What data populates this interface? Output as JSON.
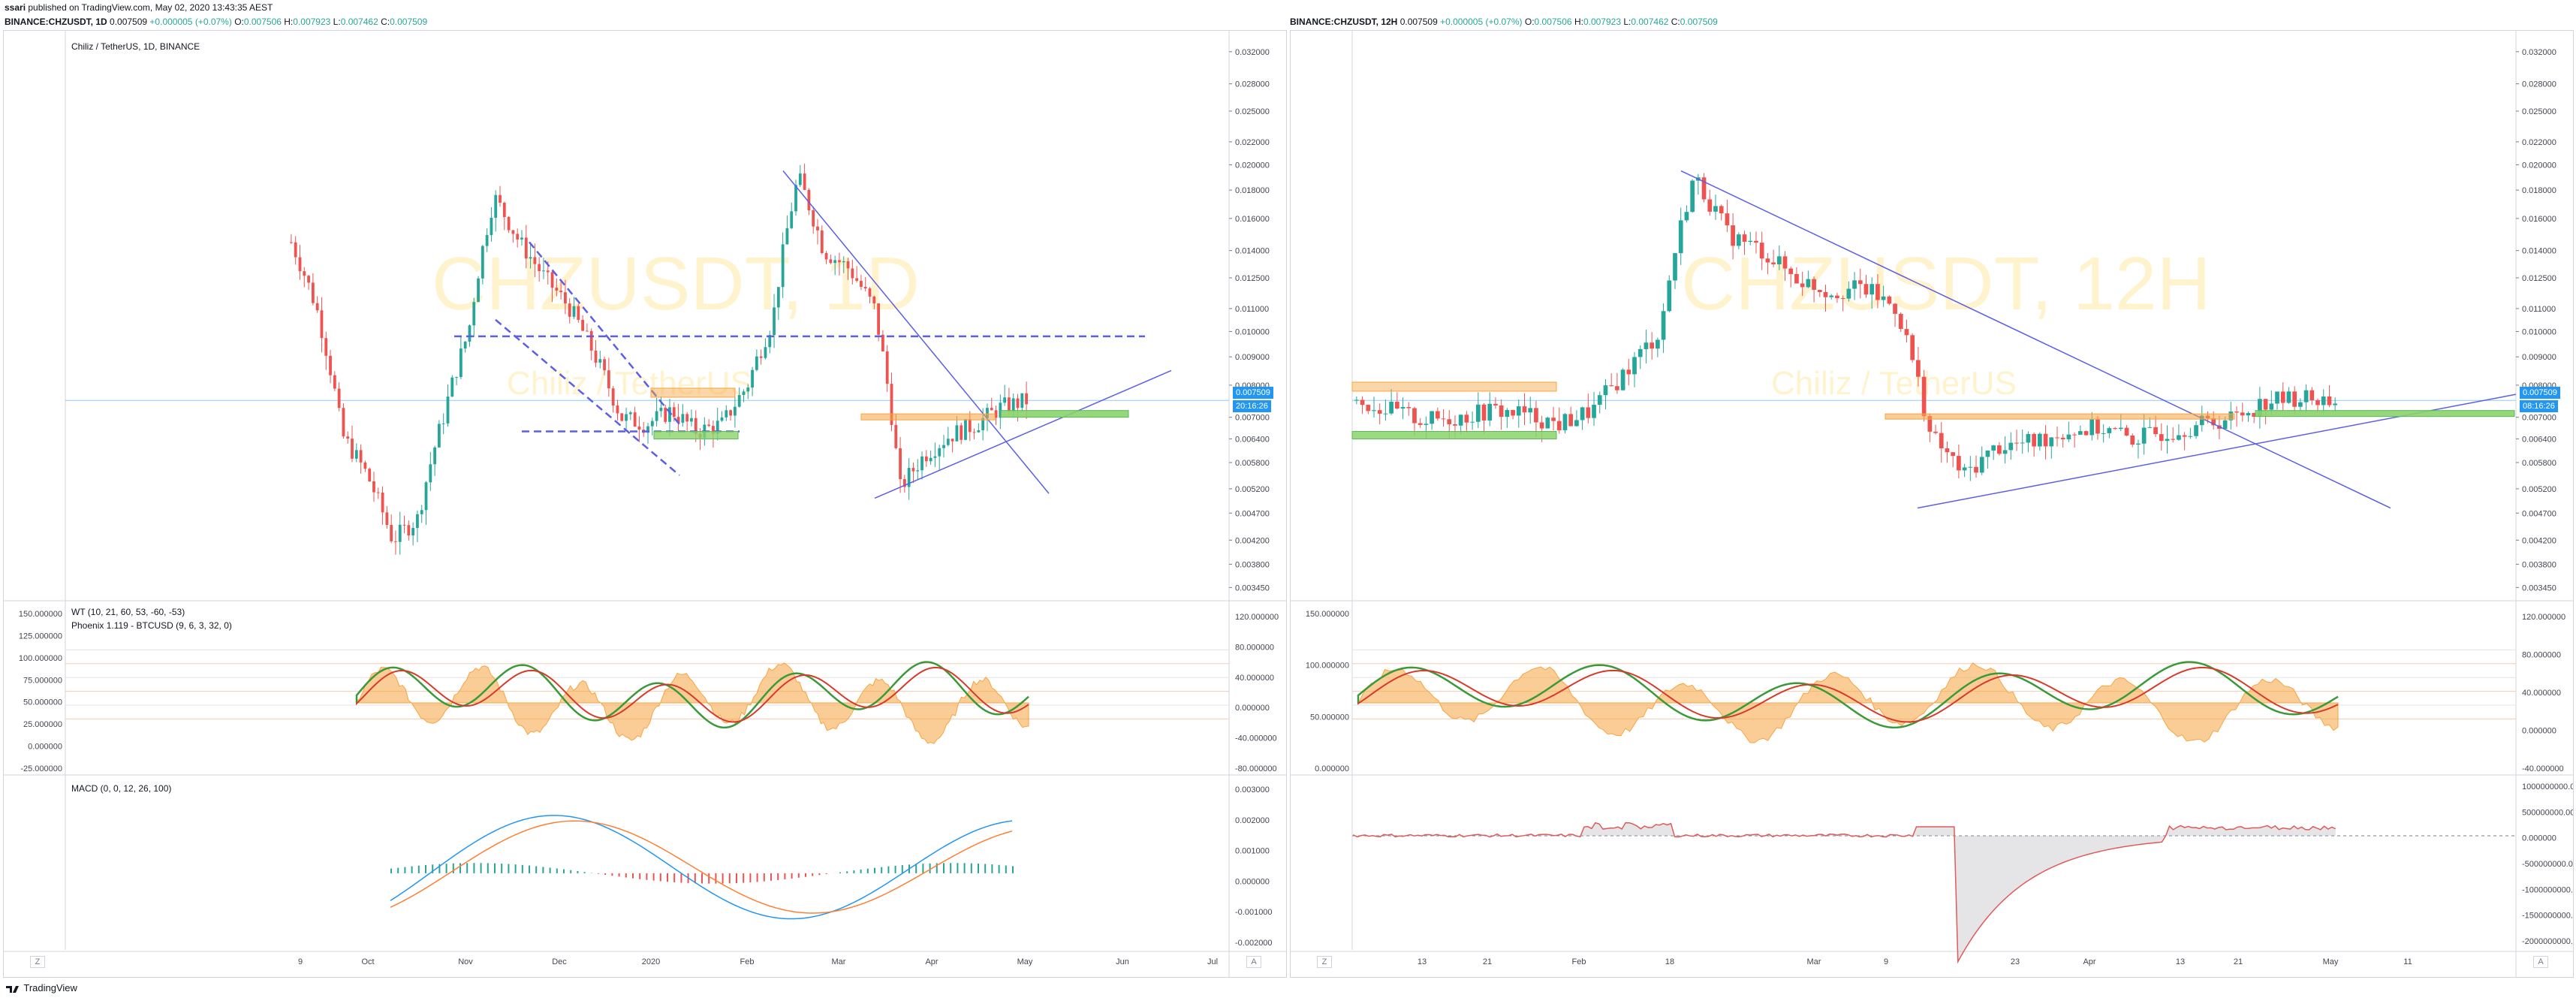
{
  "header": {
    "publisher": "ssari",
    "published_text": "published on TradingView.com, May 02, 2020 13:43:35 AEST"
  },
  "left": {
    "symbol": "BINANCE:CHZUSDT, 1D",
    "O": "0.007509",
    "change": "+0.000005 (+0.07%)",
    "open": "0.007506",
    "high": "0.007923",
    "low": "0.007462",
    "close": "0.007509",
    "pane_title": "Chiliz / TetherUS, 1D, BINANCE",
    "watermark": "CHZUSDT, 1D",
    "watermark_sub": "Chiliz / TetherUS",
    "price_tag": "0.007509",
    "timer_tag": "20:16:26",
    "price_ticks": [
      "0.032000",
      "0.028000",
      "0.025000",
      "0.022000",
      "0.020000",
      "0.018000",
      "0.016000",
      "0.014000",
      "0.012500",
      "0.011000",
      "0.010000",
      "0.009000",
      "0.008000",
      "0.007000",
      "0.006400",
      "0.005800",
      "0.005200",
      "0.004700",
      "0.004200",
      "0.003800",
      "0.003450"
    ],
    "wt_title": "WT (10, 21, 60, 53, -60, -53)",
    "phoenix_title": "Phoenix 1.119 - BTCUSD (9, 6, 3, 32, 0)",
    "osc_left_ticks": [
      "150.000000",
      "125.000000",
      "100.000000",
      "75.000000",
      "50.000000",
      "25.000000",
      "0.000000",
      "-25.000000"
    ],
    "osc_right_ticks": [
      "120.000000",
      "80.000000",
      "40.000000",
      "0.000000",
      "-40.000000",
      "-80.000000"
    ],
    "macd_title": "MACD (0, 0, 12, 26, 100)",
    "macd_ticks": [
      "0.003000",
      "0.002000",
      "0.001000",
      "0.000000",
      "-0.001000",
      "-0.002000"
    ],
    "time_ticks": [
      "9",
      "Oct",
      "Nov",
      "Dec",
      "2020",
      "Feb",
      "Mar",
      "Apr",
      "May",
      "Jun",
      "Jul"
    ]
  },
  "right": {
    "symbol": "BINANCE:CHZUSDT, 12H",
    "O": "0.007509",
    "change": "+0.000005 (+0.07%)",
    "open": "0.007506",
    "high": "0.007923",
    "low": "0.007462",
    "close": "0.007509",
    "watermark": "CHZUSDT, 12H",
    "watermark_sub": "Chiliz / TetherUS",
    "price_tag": "0.007509",
    "timer_tag": "08:16:26",
    "price_ticks": [
      "0.032000",
      "0.028000",
      "0.025000",
      "0.022000",
      "0.020000",
      "0.018000",
      "0.016000",
      "0.014000",
      "0.012500",
      "0.011000",
      "0.010000",
      "0.009000",
      "0.008000",
      "0.007000",
      "0.006400",
      "0.005800",
      "0.005200",
      "0.004700",
      "0.004200",
      "0.003800",
      "0.003450"
    ],
    "osc_left_ticks": [
      "150.000000",
      "100.000000",
      "50.000000",
      "0.000000"
    ],
    "osc_right_ticks": [
      "120.000000",
      "80.000000",
      "40.000000",
      "0.000000",
      "-40.000000"
    ],
    "macd_ticks": [
      "1000000000.000000",
      "500000000.000000",
      "0.000000",
      "-500000000.000000",
      "-1000000000.000000",
      "-1500000000.000000",
      "-2000000000.000000"
    ],
    "time_ticks": [
      "13",
      "21",
      "Feb",
      "18",
      "Mar",
      "9",
      "23",
      "Apr",
      "13",
      "21",
      "May",
      "11"
    ]
  },
  "axis_button": "A",
  "zoom_button": "Z",
  "footer": {
    "brand": "TradingView"
  },
  "colors": {
    "up": "#26a69a",
    "down": "#ef5350",
    "trend": "#5b5fe8",
    "orange": "#f7a440",
    "green": "#8bd36b",
    "price_tag": "#2196f3"
  },
  "chart_data": [
    {
      "type": "line",
      "title": "Chiliz / TetherUS, 1D, BINANCE",
      "series": [
        {
          "name": "CHZUSDT 1D close",
          "values": [
            0.0145,
            0.011,
            0.0065,
            0.0055,
            0.0042,
            0.0046,
            0.007,
            0.01,
            0.0175,
            0.0145,
            0.0125,
            0.011,
            0.009,
            0.007,
            0.0068,
            0.0072,
            0.0066,
            0.0068,
            0.008,
            0.0105,
            0.019,
            0.014,
            0.013,
            0.011,
            0.0052,
            0.006,
            0.0065,
            0.0068,
            0.0073,
            0.0075
          ]
        }
      ],
      "ylim": [
        0.0034,
        0.033
      ]
    },
    {
      "type": "line",
      "title": "CHZUSDT 12H",
      "series": [
        {
          "name": "CHZUSDT 12H close",
          "values": [
            0.0075,
            0.0072,
            0.0069,
            0.007,
            0.0072,
            0.0071,
            0.0068,
            0.0072,
            0.0085,
            0.01,
            0.019,
            0.015,
            0.014,
            0.0125,
            0.0118,
            0.012,
            0.011,
            0.0065,
            0.0055,
            0.0062,
            0.0063,
            0.0066,
            0.0067,
            0.0064,
            0.0066,
            0.0068,
            0.007,
            0.0075,
            0.0076,
            0.0075
          ]
        }
      ],
      "ylim": [
        0.0034,
        0.033
      ]
    }
  ]
}
